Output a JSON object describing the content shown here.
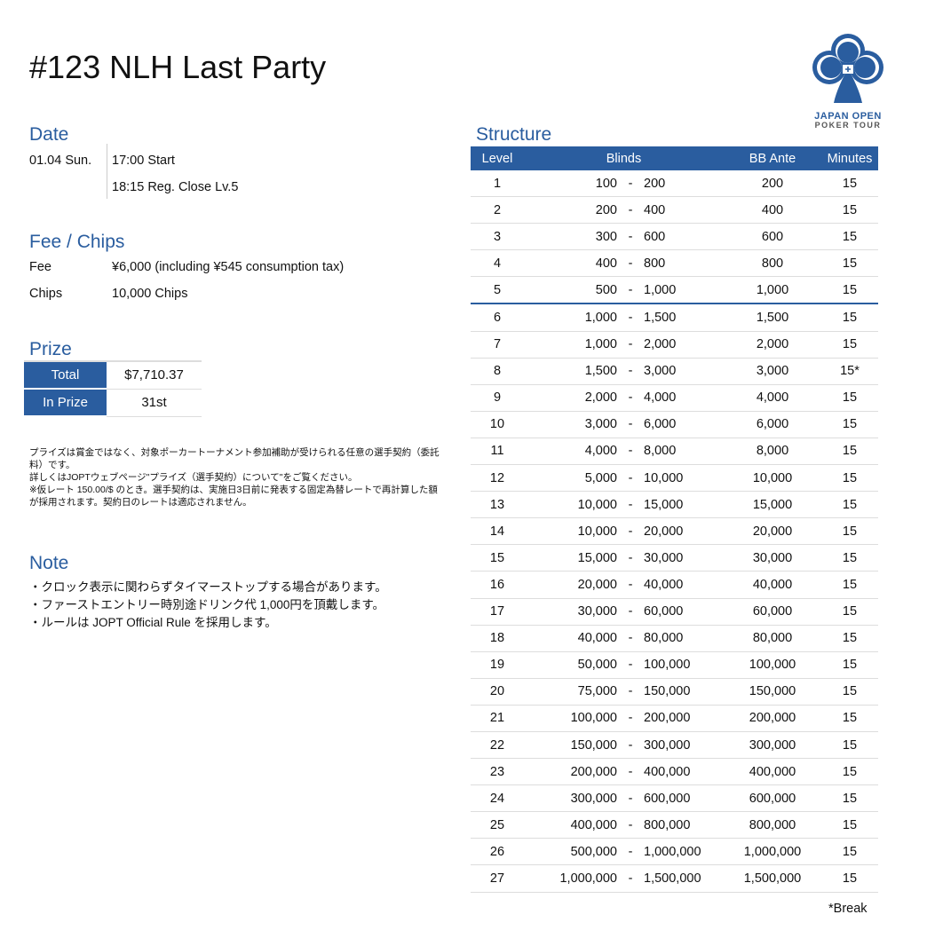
{
  "title": "#123 NLH Last Party",
  "logo": {
    "line1": "JAPAN OPEN",
    "line2": "POKER TOUR",
    "color": "#2a5d9f"
  },
  "date": {
    "heading": "Date",
    "day": "01.04 Sun.",
    "start": "17:00 Start",
    "close": "18:15 Reg. Close Lv.5"
  },
  "fee": {
    "heading": "Fee / Chips",
    "fee_label": "Fee",
    "fee_value": "¥6,000 (including ¥545 consumption tax)",
    "chips_label": "Chips",
    "chips_value": "10,000 Chips"
  },
  "prize": {
    "heading": "Prize",
    "total_label": "Total",
    "total_value": "$7,710.37",
    "inprize_label": "In Prize",
    "inprize_value": "31st"
  },
  "disclaimer": [
    "プライズは賞金ではなく、対象ポーカートーナメント参加補助が受けられる任意の選手契約（委託料）です。",
    "詳しくはJOPTウェブページ\"プライズ（選手契約）について\"をご覧ください。",
    "※仮レート 150.00/$ のとき。選手契約は、実施日3日前に発表する固定為替レートで再計算した額が採用されます。契約日のレートは適応されません。"
  ],
  "note": {
    "heading": "Note",
    "items": [
      "・クロック表示に関わらずタイマーストップする場合があります。",
      "・ファーストエントリー時別途ドリンク代 1,000円を頂戴します。",
      "・ルールは JOPT Official Rule を採用します。"
    ]
  },
  "structure": {
    "heading": "Structure",
    "columns": [
      "Level",
      "Blinds",
      "BB Ante",
      "Minutes"
    ],
    "rows": [
      [
        "1",
        "100",
        "200",
        "200",
        "15"
      ],
      [
        "2",
        "200",
        "400",
        "400",
        "15"
      ],
      [
        "3",
        "300",
        "600",
        "600",
        "15"
      ],
      [
        "4",
        "400",
        "800",
        "800",
        "15"
      ],
      [
        "5",
        "500",
        "1,000",
        "1,000",
        "15"
      ],
      [
        "6",
        "1,000",
        "1,500",
        "1,500",
        "15"
      ],
      [
        "7",
        "1,000",
        "2,000",
        "2,000",
        "15"
      ],
      [
        "8",
        "1,500",
        "3,000",
        "3,000",
        "15*"
      ],
      [
        "9",
        "2,000",
        "4,000",
        "4,000",
        "15"
      ],
      [
        "10",
        "3,000",
        "6,000",
        "6,000",
        "15"
      ],
      [
        "11",
        "4,000",
        "8,000",
        "8,000",
        "15"
      ],
      [
        "12",
        "5,000",
        "10,000",
        "10,000",
        "15"
      ],
      [
        "13",
        "10,000",
        "15,000",
        "15,000",
        "15"
      ],
      [
        "14",
        "10,000",
        "20,000",
        "20,000",
        "15"
      ],
      [
        "15",
        "15,000",
        "30,000",
        "30,000",
        "15"
      ],
      [
        "16",
        "20,000",
        "40,000",
        "40,000",
        "15"
      ],
      [
        "17",
        "30,000",
        "60,000",
        "60,000",
        "15"
      ],
      [
        "18",
        "40,000",
        "80,000",
        "80,000",
        "15"
      ],
      [
        "19",
        "50,000",
        "100,000",
        "100,000",
        "15"
      ],
      [
        "20",
        "75,000",
        "150,000",
        "150,000",
        "15"
      ],
      [
        "21",
        "100,000",
        "200,000",
        "200,000",
        "15"
      ],
      [
        "22",
        "150,000",
        "300,000",
        "300,000",
        "15"
      ],
      [
        "23",
        "200,000",
        "400,000",
        "400,000",
        "15"
      ],
      [
        "24",
        "300,000",
        "600,000",
        "600,000",
        "15"
      ],
      [
        "25",
        "400,000",
        "800,000",
        "800,000",
        "15"
      ],
      [
        "26",
        "500,000",
        "1,000,000",
        "1,000,000",
        "15"
      ],
      [
        "27",
        "1,000,000",
        "1,500,000",
        "1,500,000",
        "15"
      ]
    ],
    "dash": "-",
    "break_note": "*Break"
  }
}
